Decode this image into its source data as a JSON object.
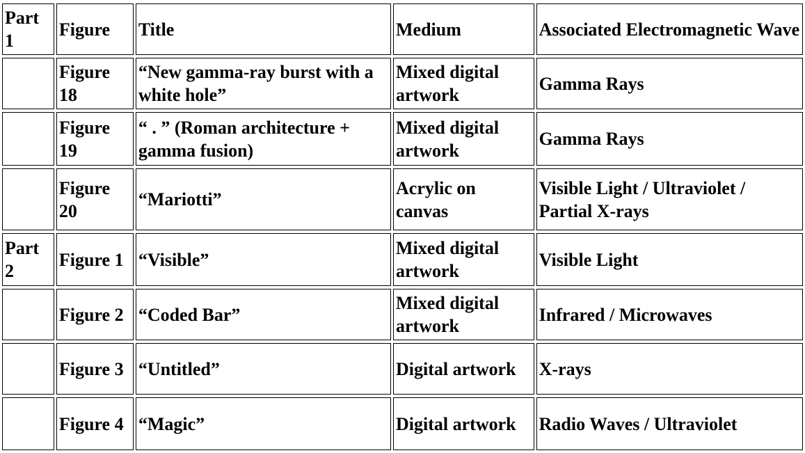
{
  "header": {
    "part": "Part 1",
    "figure": "Figure",
    "title": "Title",
    "medium": "Medium",
    "wave": "Associated Electromagnetic Wave"
  },
  "rows": [
    {
      "part": "",
      "figure": "Figure 18",
      "title": "“New gamma-ray burst with a white hole”",
      "medium": "Mixed digital artwork",
      "wave": "Gamma Rays"
    },
    {
      "part": "",
      "figure": "Figure 19",
      "title": "“ . ” (Roman architecture + gamma fusion)",
      "medium": "Mixed digital artwork",
      "wave": "Gamma Rays"
    },
    {
      "part": "",
      "figure": "Figure 20",
      "title": "“Mariotti”",
      "medium": "Acrylic on canvas",
      "wave": "Visible Light / Ultraviolet / Partial X-rays"
    },
    {
      "part": "Part 2",
      "figure": "Figure 1",
      "title": "“Visible”",
      "medium": "Mixed digital artwork",
      "wave": "Visible Light"
    },
    {
      "part": "",
      "figure": "Figure 2",
      "title": "“Coded Bar”",
      "medium": "Mixed digital artwork",
      "wave": "Infrared / Microwaves"
    },
    {
      "part": "",
      "figure": "Figure 3",
      "title": "“Untitled”",
      "medium": "Digital artwork",
      "wave": "X-rays"
    },
    {
      "part": "",
      "figure": "Figure 4",
      "title": "“Magic”",
      "medium": "Digital artwork",
      "wave": "Radio Waves / Ultraviolet"
    }
  ]
}
